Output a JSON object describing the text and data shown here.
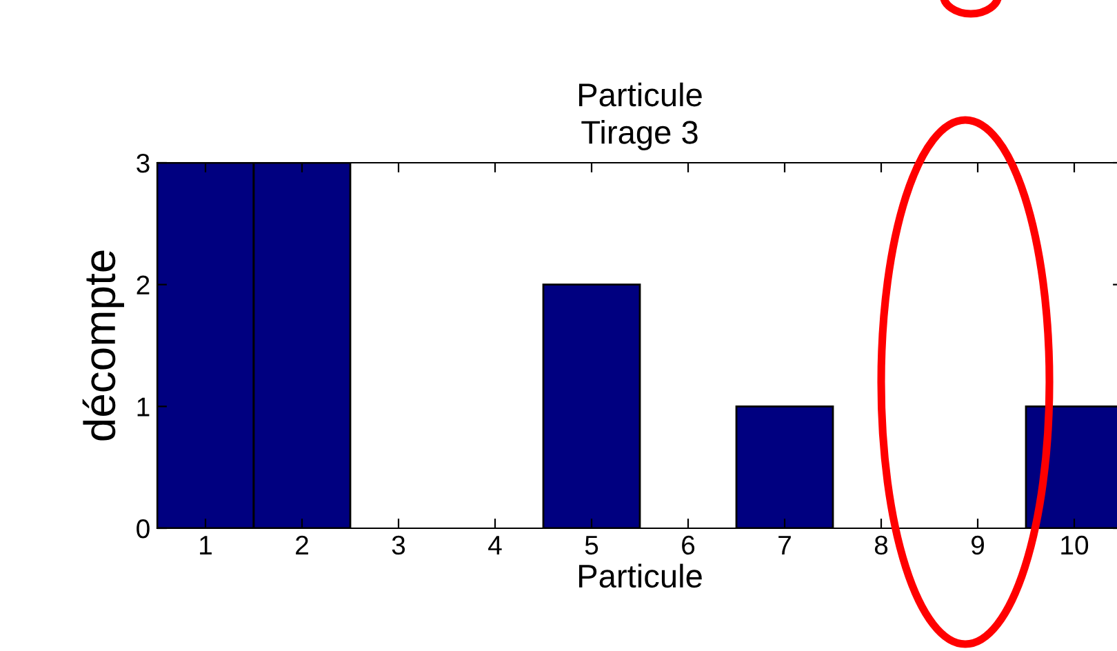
{
  "chart_data": {
    "type": "bar",
    "title": "Particule\nTirage 3",
    "xlabel": "Particule",
    "ylabel": "décompte",
    "categories": [
      "1",
      "2",
      "3",
      "4",
      "5",
      "6",
      "7",
      "8",
      "9",
      "10"
    ],
    "values": [
      3,
      3,
      0,
      0,
      2,
      0,
      1,
      0,
      0,
      1
    ],
    "color": "#000080",
    "ylim": [
      0,
      3
    ],
    "yticks": [
      0,
      1,
      2,
      3
    ],
    "grid": false,
    "legend": false
  }
}
